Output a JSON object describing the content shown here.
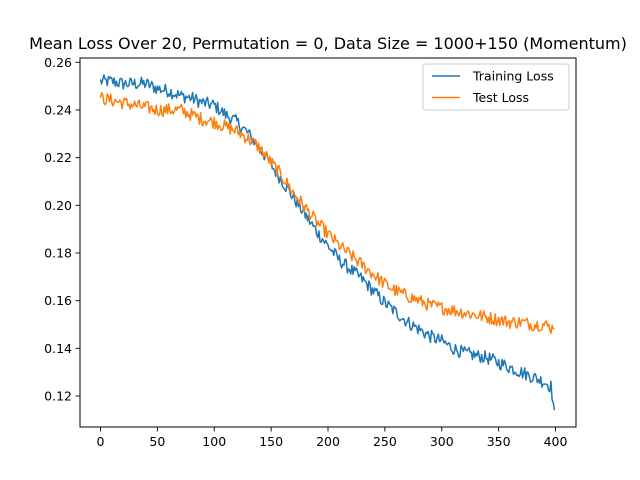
{
  "chart_data": {
    "type": "line",
    "title": "Mean Loss Over 20, Permutation = 0, Data Size = 1000+150 (Momentum)",
    "xlabel": "",
    "ylabel": "",
    "xlim": [
      -18,
      418
    ],
    "ylim": [
      0.107,
      0.2618
    ],
    "xticks": [
      0,
      50,
      100,
      150,
      200,
      250,
      300,
      350,
      400
    ],
    "yticks": [
      0.12,
      0.14,
      0.16,
      0.18,
      0.2,
      0.22,
      0.24,
      0.26
    ],
    "ytick_labels": [
      "0.12",
      "0.14",
      "0.16",
      "0.18",
      "0.20",
      "0.22",
      "0.24",
      "0.26"
    ],
    "grid": false,
    "legend_position": "top-right",
    "series": [
      {
        "name": "Training Loss",
        "color": "#1f77b4",
        "x": [
          0,
          10,
          20,
          30,
          40,
          50,
          60,
          70,
          80,
          90,
          100,
          110,
          120,
          130,
          140,
          150,
          160,
          170,
          180,
          190,
          200,
          210,
          220,
          230,
          240,
          250,
          260,
          270,
          280,
          290,
          300,
          310,
          320,
          330,
          340,
          350,
          360,
          370,
          380,
          390,
          396,
          399
        ],
        "y": [
          0.252,
          0.252,
          0.251,
          0.251,
          0.251,
          0.249,
          0.248,
          0.246,
          0.245,
          0.243,
          0.242,
          0.238,
          0.235,
          0.23,
          0.224,
          0.217,
          0.21,
          0.203,
          0.196,
          0.189,
          0.183,
          0.177,
          0.173,
          0.169,
          0.164,
          0.159,
          0.155,
          0.151,
          0.148,
          0.145,
          0.143,
          0.14,
          0.138,
          0.137,
          0.136,
          0.134,
          0.132,
          0.13,
          0.128,
          0.126,
          0.124,
          0.114
        ]
      },
      {
        "name": "Test Loss",
        "color": "#ff7f0e",
        "x": [
          0,
          10,
          20,
          30,
          40,
          50,
          60,
          70,
          80,
          90,
          100,
          110,
          120,
          130,
          140,
          150,
          160,
          170,
          180,
          190,
          200,
          210,
          220,
          230,
          240,
          250,
          260,
          270,
          280,
          290,
          300,
          310,
          320,
          330,
          340,
          350,
          360,
          370,
          380,
          390,
          399
        ],
        "y": [
          0.245,
          0.244,
          0.243,
          0.242,
          0.241,
          0.24,
          0.24,
          0.24,
          0.238,
          0.236,
          0.235,
          0.233,
          0.231,
          0.228,
          0.224,
          0.218,
          0.212,
          0.205,
          0.199,
          0.193,
          0.188,
          0.183,
          0.179,
          0.175,
          0.171,
          0.167,
          0.164,
          0.162,
          0.16,
          0.158,
          0.157,
          0.156,
          0.155,
          0.154,
          0.153,
          0.152,
          0.151,
          0.151,
          0.15,
          0.15,
          0.148
        ]
      }
    ]
  }
}
